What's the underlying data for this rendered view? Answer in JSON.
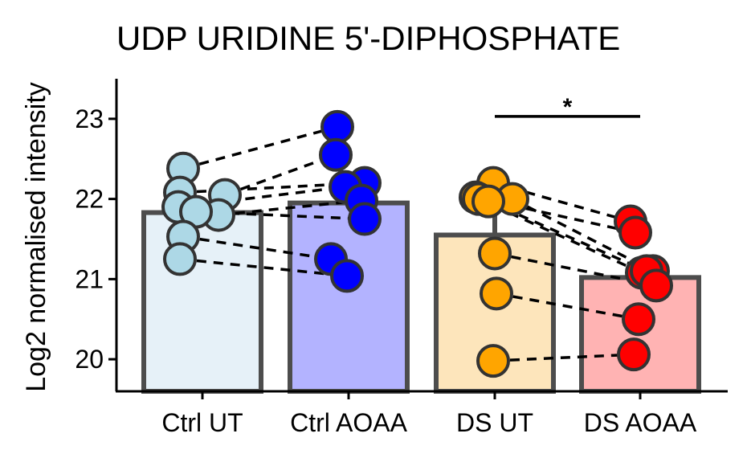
{
  "chart_data": {
    "type": "bar",
    "title": "UDP URIDINE 5'-DIPHOSPHATE",
    "xlabel": "",
    "ylabel": "Log2 normalised intensity",
    "ylim": [
      19.6,
      23.5
    ],
    "yticks": [
      20,
      21,
      22,
      23
    ],
    "categories": [
      "Ctrl UT",
      "Ctrl AOAA",
      "DS UT",
      "DS AOAA"
    ],
    "values": [
      21.83,
      21.95,
      21.55,
      21.02
    ],
    "error_upper": [
      21.87,
      22.17,
      22.0,
      21.05
    ],
    "bar_fill": [
      "#e6f1f8",
      "#b3b3ff",
      "#fde5bb",
      "#ffb3b3"
    ],
    "point_fill": [
      "#add8e6",
      "#0000ff",
      "#ffa500",
      "#ff0000"
    ],
    "bar_edge": "#4d4d4d",
    "points": [
      [
        22.38,
        22.05,
        22.08,
        21.9,
        21.8,
        21.84,
        21.53,
        21.25
      ],
      [
        22.9,
        22.55,
        22.2,
        22.15,
        21.98,
        21.75,
        21.25,
        21.04
      ],
      [
        22.2,
        22.02,
        22.0,
        22.0,
        21.97,
        21.32,
        20.82,
        19.98
      ],
      [
        21.72,
        21.58,
        21.1,
        21.08,
        21.1,
        20.92,
        20.5,
        20.06
      ]
    ],
    "pairs": [
      {
        "from": [
          0,
          0
        ],
        "to": [
          1,
          0
        ]
      },
      {
        "from": [
          0,
          1
        ],
        "to": [
          1,
          1
        ]
      },
      {
        "from": [
          0,
          2
        ],
        "to": [
          1,
          2
        ]
      },
      {
        "from": [
          0,
          3
        ],
        "to": [
          1,
          3
        ]
      },
      {
        "from": [
          0,
          4
        ],
        "to": [
          1,
          4
        ]
      },
      {
        "from": [
          0,
          5
        ],
        "to": [
          1,
          5
        ]
      },
      {
        "from": [
          0,
          6
        ],
        "to": [
          1,
          6
        ]
      },
      {
        "from": [
          0,
          7
        ],
        "to": [
          1,
          7
        ]
      },
      {
        "from": [
          2,
          0
        ],
        "to": [
          3,
          0
        ]
      },
      {
        "from": [
          2,
          1
        ],
        "to": [
          3,
          1
        ]
      },
      {
        "from": [
          2,
          2
        ],
        "to": [
          3,
          2
        ]
      },
      {
        "from": [
          2,
          3
        ],
        "to": [
          3,
          3
        ]
      },
      {
        "from": [
          2,
          4
        ],
        "to": [
          3,
          4
        ]
      },
      {
        "from": [
          2,
          5
        ],
        "to": [
          3,
          5
        ]
      },
      {
        "from": [
          2,
          6
        ],
        "to": [
          3,
          6
        ]
      },
      {
        "from": [
          2,
          7
        ],
        "to": [
          3,
          7
        ]
      }
    ],
    "significance": [
      {
        "groups": [
          2,
          3
        ],
        "y": 23.03,
        "label": "*"
      }
    ],
    "grid": false,
    "legend": "none"
  }
}
